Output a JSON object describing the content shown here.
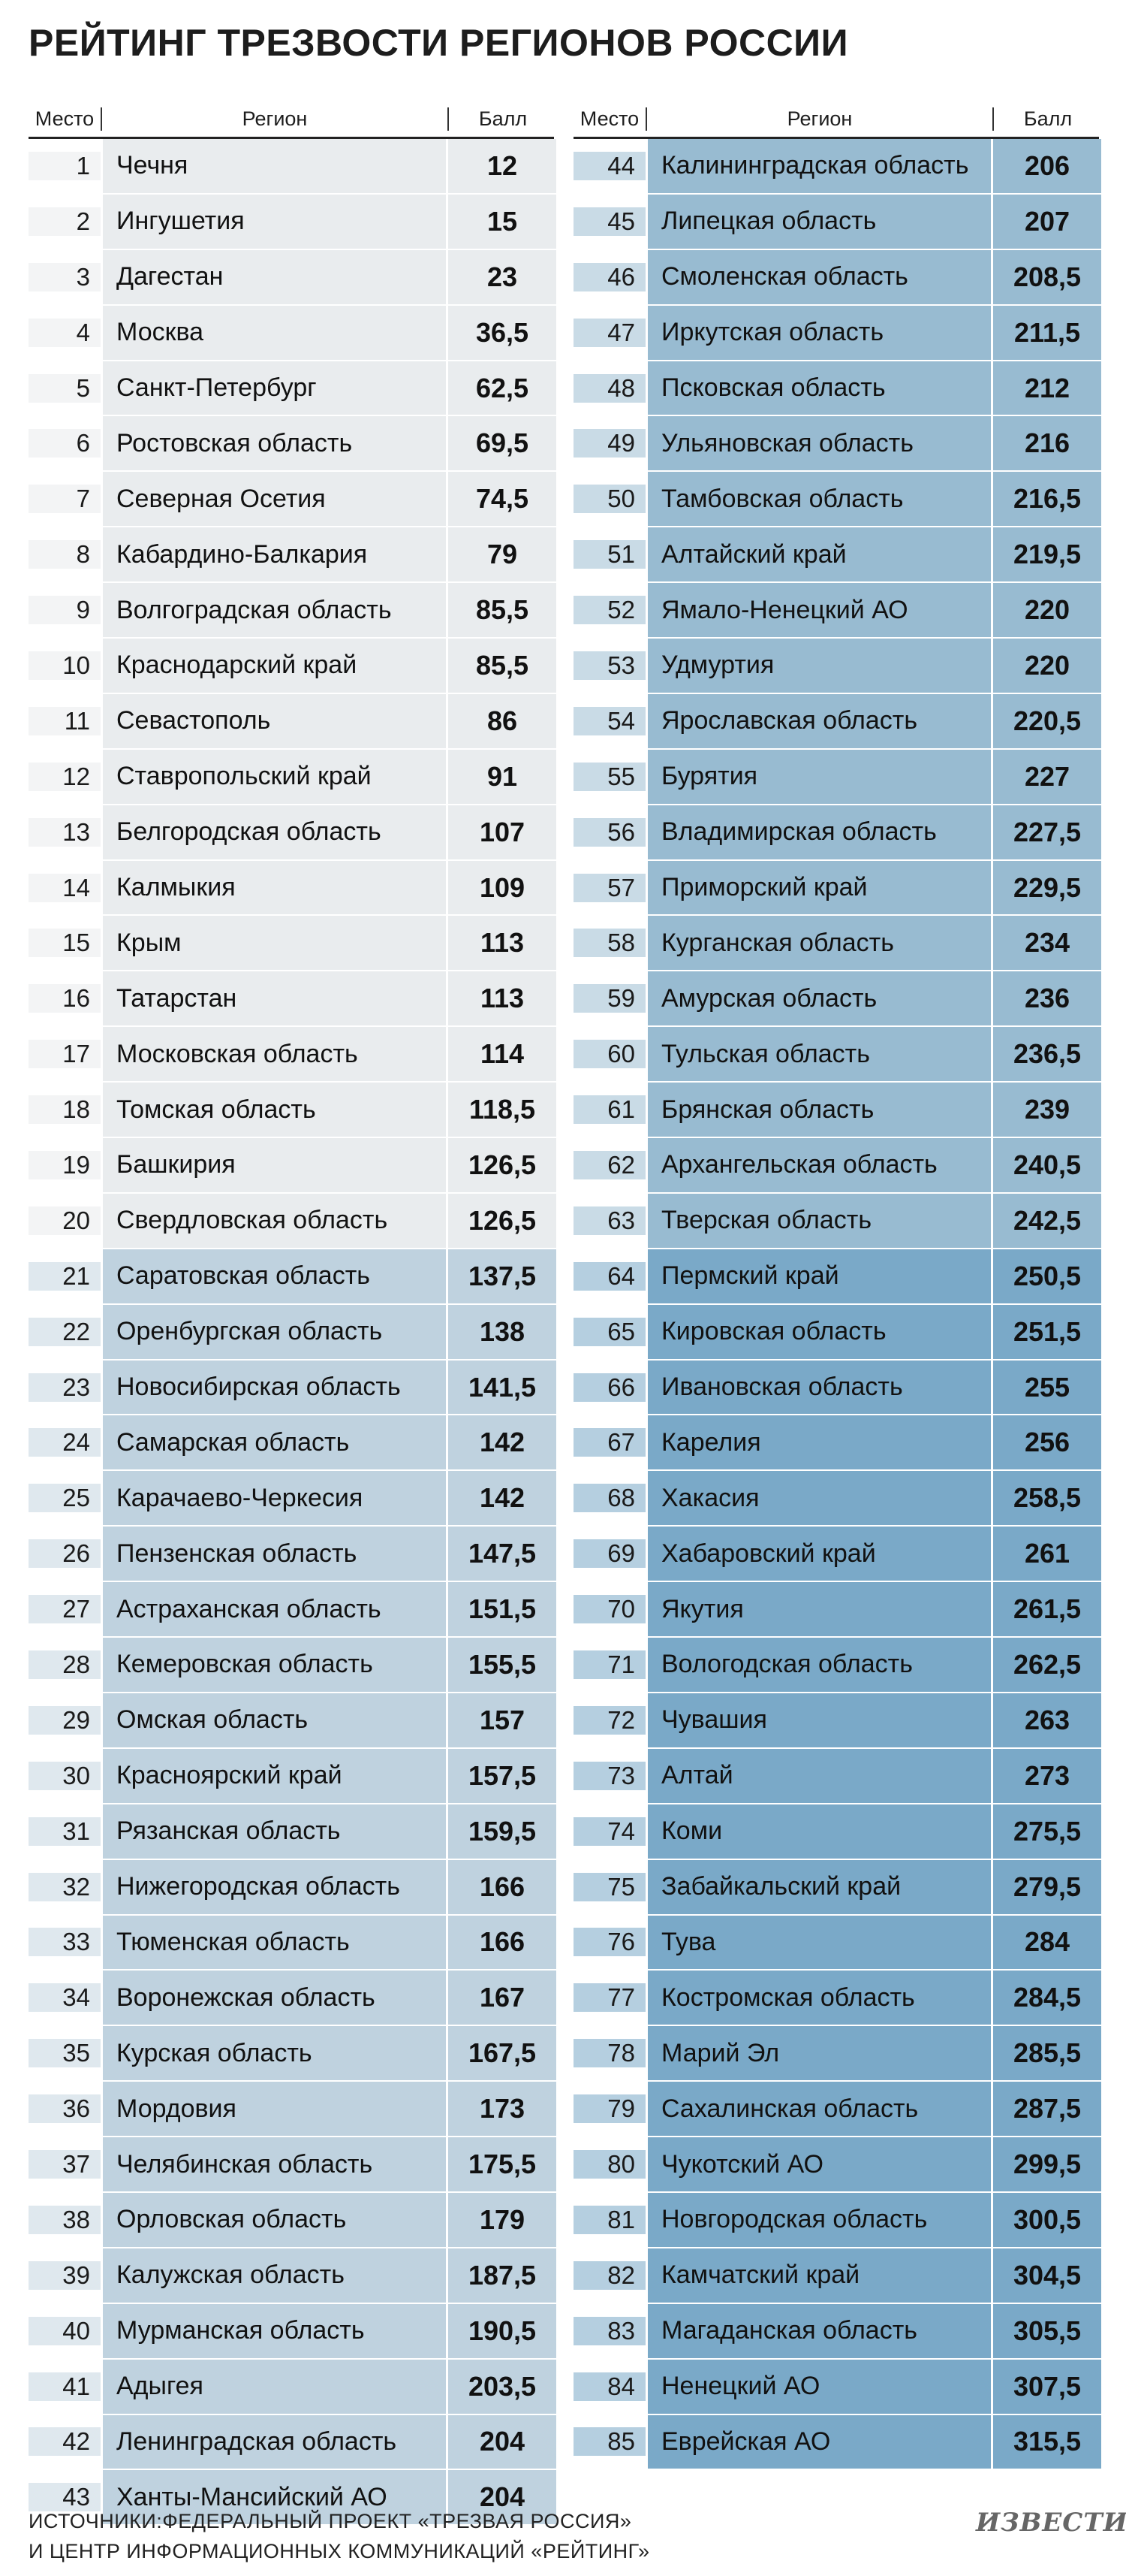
{
  "title": "РЕЙТИНГ ТРЕЗВОСТИ РЕГИОНОВ РОССИИ",
  "columns": {
    "place": "Место",
    "region": "Регион",
    "score": "Балл"
  },
  "colors": {
    "tier1": "#e9ecee",
    "tier2": "#bfd2df",
    "tier3": "#98bbd1",
    "tier4": "#7aa9c8"
  },
  "left_rows": [
    {
      "place": "1",
      "region": "Чечня",
      "score": "12"
    },
    {
      "place": "2",
      "region": "Ингушетия",
      "score": "15"
    },
    {
      "place": "3",
      "region": "Дагестан",
      "score": "23"
    },
    {
      "place": "4",
      "region": "Москва",
      "score": "36,5"
    },
    {
      "place": "5",
      "region": "Санкт-Петербург",
      "score": "62,5"
    },
    {
      "place": "6",
      "region": "Ростовская область",
      "score": "69,5"
    },
    {
      "place": "7",
      "region": "Северная Осетия",
      "score": "74,5"
    },
    {
      "place": "8",
      "region": "Кабардино-Балкария",
      "score": "79"
    },
    {
      "place": "9",
      "region": "Волгоградская область",
      "score": "85,5"
    },
    {
      "place": "10",
      "region": "Краснодарский край",
      "score": "85,5"
    },
    {
      "place": "11",
      "region": "Севастополь",
      "score": "86"
    },
    {
      "place": "12",
      "region": "Ставропольский край",
      "score": "91"
    },
    {
      "place": "13",
      "region": "Белгородская область",
      "score": "107"
    },
    {
      "place": "14",
      "region": "Калмыкия",
      "score": "109"
    },
    {
      "place": "15",
      "region": "Крым",
      "score": "113"
    },
    {
      "place": "16",
      "region": "Татарстан",
      "score": "113"
    },
    {
      "place": "17",
      "region": "Московская область",
      "score": "114"
    },
    {
      "place": "18",
      "region": "Томская область",
      "score": "118,5"
    },
    {
      "place": "19",
      "region": "Башкирия",
      "score": "126,5"
    },
    {
      "place": "20",
      "region": "Свердловская область",
      "score": "126,5"
    },
    {
      "place": "21",
      "region": "Саратовская область",
      "score": "137,5"
    },
    {
      "place": "22",
      "region": "Оренбургская область",
      "score": "138"
    },
    {
      "place": "23",
      "region": "Новосибирская область",
      "score": "141,5"
    },
    {
      "place": "24",
      "region": "Самарская область",
      "score": "142"
    },
    {
      "place": "25",
      "region": "Карачаево-Черкесия",
      "score": "142"
    },
    {
      "place": "26",
      "region": "Пензенская область",
      "score": "147,5"
    },
    {
      "place": "27",
      "region": "Астраханская область",
      "score": "151,5"
    },
    {
      "place": "28",
      "region": "Кемеровская область",
      "score": "155,5"
    },
    {
      "place": "29",
      "region": "Омская область",
      "score": "157"
    },
    {
      "place": "30",
      "region": "Красноярский край",
      "score": "157,5"
    },
    {
      "place": "31",
      "region": "Рязанская область",
      "score": "159,5"
    },
    {
      "place": "32",
      "region": "Нижегородская область",
      "score": "166"
    },
    {
      "place": "33",
      "region": "Тюменская область",
      "score": "166"
    },
    {
      "place": "34",
      "region": "Воронежская область",
      "score": "167"
    },
    {
      "place": "35",
      "region": "Курская область",
      "score": "167,5"
    },
    {
      "place": "36",
      "region": "Мордовия",
      "score": "173"
    },
    {
      "place": "37",
      "region": "Челябинская область",
      "score": "175,5"
    },
    {
      "place": "38",
      "region": "Орловская область",
      "score": "179"
    },
    {
      "place": "39",
      "region": "Калужская область",
      "score": "187,5"
    },
    {
      "place": "40",
      "region": "Мурманская область",
      "score": "190,5"
    },
    {
      "place": "41",
      "region": "Адыгея",
      "score": "203,5"
    },
    {
      "place": "42",
      "region": "Ленинградская область",
      "score": "204"
    },
    {
      "place": "43",
      "region": "Ханты-Мансийский АО",
      "score": "204"
    }
  ],
  "right_rows": [
    {
      "place": "44",
      "region": "Калининградская область",
      "score": "206"
    },
    {
      "place": "45",
      "region": "Липецкая область",
      "score": "207"
    },
    {
      "place": "46",
      "region": "Смоленская область",
      "score": "208,5"
    },
    {
      "place": "47",
      "region": "Иркутская область",
      "score": "211,5"
    },
    {
      "place": "48",
      "region": "Псковская область",
      "score": "212"
    },
    {
      "place": "49",
      "region": "Ульяновская область",
      "score": "216"
    },
    {
      "place": "50",
      "region": "Тамбовская область",
      "score": "216,5"
    },
    {
      "place": "51",
      "region": "Алтайский край",
      "score": "219,5"
    },
    {
      "place": "52",
      "region": "Ямало-Ненецкий АО",
      "score": "220"
    },
    {
      "place": "53",
      "region": "Удмуртия",
      "score": "220"
    },
    {
      "place": "54",
      "region": "Ярославская область",
      "score": "220,5"
    },
    {
      "place": "55",
      "region": "Бурятия",
      "score": "227"
    },
    {
      "place": "56",
      "region": "Владимирская область",
      "score": "227,5"
    },
    {
      "place": "57",
      "region": "Приморский край",
      "score": "229,5"
    },
    {
      "place": "58",
      "region": "Курганская область",
      "score": "234"
    },
    {
      "place": "59",
      "region": "Амурская область",
      "score": "236"
    },
    {
      "place": "60",
      "region": "Тульская область",
      "score": "236,5"
    },
    {
      "place": "61",
      "region": "Брянская область",
      "score": "239"
    },
    {
      "place": "62",
      "region": "Архангельская область",
      "score": "240,5"
    },
    {
      "place": "63",
      "region": "Тверская область",
      "score": "242,5"
    },
    {
      "place": "64",
      "region": "Пермский край",
      "score": "250,5"
    },
    {
      "place": "65",
      "region": "Кировская область",
      "score": "251,5"
    },
    {
      "place": "66",
      "region": "Ивановская область",
      "score": "255"
    },
    {
      "place": "67",
      "region": "Карелия",
      "score": "256"
    },
    {
      "place": "68",
      "region": "Хакасия",
      "score": "258,5"
    },
    {
      "place": "69",
      "region": "Хабаровский край",
      "score": "261"
    },
    {
      "place": "70",
      "region": "Якутия",
      "score": "261,5"
    },
    {
      "place": "71",
      "region": "Вологодская область",
      "score": "262,5"
    },
    {
      "place": "72",
      "region": "Чувашия",
      "score": "263"
    },
    {
      "place": "73",
      "region": "Алтай",
      "score": "273"
    },
    {
      "place": "74",
      "region": "Коми",
      "score": "275,5"
    },
    {
      "place": "75",
      "region": "Забайкальский край",
      "score": "279,5"
    },
    {
      "place": "76",
      "region": "Тува",
      "score": "284"
    },
    {
      "place": "77",
      "region": "Костромская область",
      "score": "284,5"
    },
    {
      "place": "78",
      "region": "Марий Эл",
      "score": "285,5"
    },
    {
      "place": "79",
      "region": "Сахалинская область",
      "score": "287,5"
    },
    {
      "place": "80",
      "region": "Чукотский АО",
      "score": "299,5"
    },
    {
      "place": "81",
      "region": "Новгородская область",
      "score": "300,5"
    },
    {
      "place": "82",
      "region": "Камчатский край",
      "score": "304,5"
    },
    {
      "place": "83",
      "region": "Магаданская область",
      "score": "305,5"
    },
    {
      "place": "84",
      "region": "Ненецкий АО",
      "score": "307,5"
    },
    {
      "place": "85",
      "region": "Еврейская АО",
      "score": "315,5"
    }
  ],
  "footer": {
    "line1": "ИСТОЧНИКИ:ФЕДЕРАЛЬНЫЙ ПРОЕКТ «ТРЕЗВАЯ РОССИЯ»",
    "line2": "И ЦЕНТР ИНФОРМАЦИОННЫХ КОММУНИКАЦИЙ «РЕЙТИНГ»"
  },
  "logo": "ИЗВЕСТИЯ"
}
